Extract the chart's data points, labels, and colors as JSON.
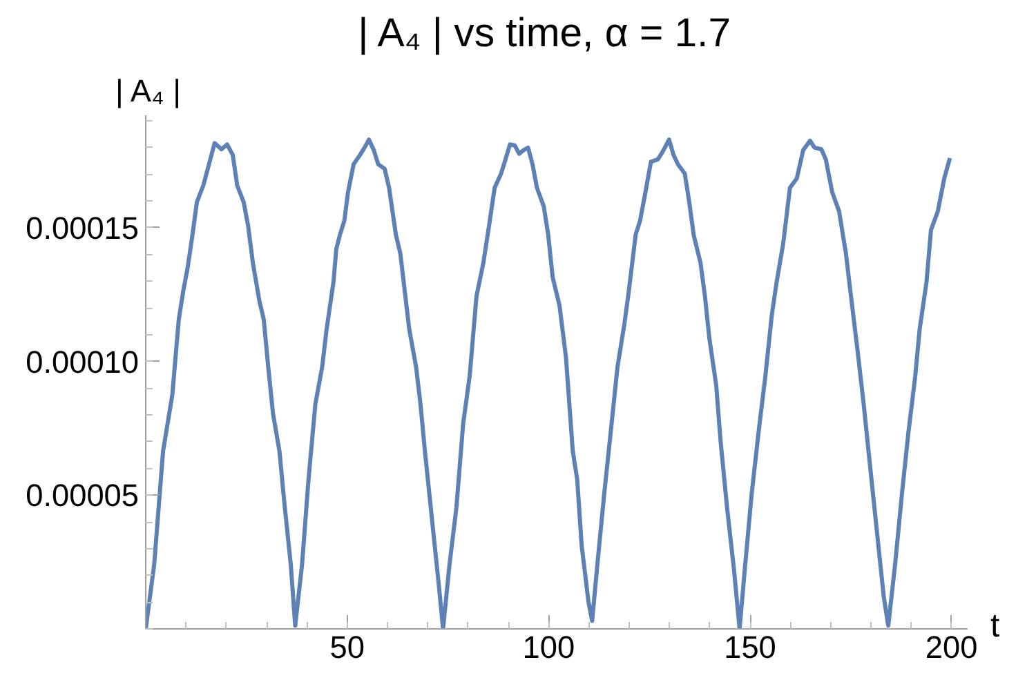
{
  "chart_data": {
    "type": "line",
    "title": "| A₄ |  vs time, α =  1.7",
    "xlabel": "t",
    "ylabel": "| A₄ |",
    "xlim": [
      0,
      204
    ],
    "ylim": [
      0,
      0.000192
    ],
    "xticks": [
      50,
      100,
      150,
      200
    ],
    "yticks": [
      {
        "value": 0,
        "label": null
      },
      {
        "value": 5e-05,
        "label": "0.00005"
      },
      {
        "value": 0.0001,
        "label": "0.00010"
      },
      {
        "value": 0.00015,
        "label": "0.00015"
      }
    ],
    "grid": false,
    "marker": "none",
    "line_style": "solid",
    "series": [
      {
        "color": "#5e81b5",
        "x": [
          0,
          2.1,
          4.3,
          6.6,
          8.2,
          9.3,
          10.4,
          11.6,
          12.7,
          14.3,
          15.4,
          17.1,
          18.8,
          20.2,
          21.6,
          22.7,
          24.3,
          25.4,
          26.6,
          28.2,
          29.3,
          30.4,
          31.6,
          33.2,
          34.3,
          36.0,
          37.1,
          38.8,
          40.4,
          42.1,
          43.8,
          44.9,
          46.6,
          47.3,
          48.2,
          49.3,
          50.2,
          51.6,
          53.2,
          54.3,
          55.4,
          56.6,
          57.7,
          59.3,
          60.4,
          62.1,
          63.2,
          64.3,
          65.4,
          67.1,
          68.2,
          69.3,
          71.0,
          72.7,
          73.8,
          75.4,
          77.1,
          78.8,
          80.4,
          82.1,
          83.8,
          85.4,
          86.6,
          88.2,
          89.3,
          90.4,
          91.6,
          92.7,
          93.8,
          94.9,
          96.0,
          97.1,
          98.8,
          99.9,
          101.0,
          102.7,
          104.3,
          106.0,
          107.1,
          108.2,
          109.9,
          110.8,
          112.1,
          113.8,
          115.4,
          117.1,
          118.8,
          119.9,
          121.6,
          122.7,
          123.8,
          125.4,
          127.1,
          128.2,
          129.9,
          131.0,
          132.1,
          133.8,
          134.9,
          136.0,
          137.7,
          138.8,
          139.9,
          141.6,
          142.7,
          144.3,
          146.0,
          147.4,
          148.8,
          150.4,
          152.1,
          153.8,
          155.4,
          156.6,
          158.2,
          159.9,
          161.6,
          163.2,
          164.9,
          166.0,
          167.7,
          168.8,
          170.4,
          172.1,
          173.8,
          174.9,
          176.6,
          178.2,
          179.9,
          181.6,
          183.2,
          184.3,
          186.0,
          187.7,
          189.3,
          191.0,
          192.1,
          193.8,
          194.9,
          196.6,
          198.2,
          199.6
        ],
        "values": [
          0,
          2.41e-05,
          6.64e-05,
          8.75e-05,
          0.0001156,
          0.0001262,
          0.000135,
          0.0001473,
          0.0001596,
          0.0001658,
          0.000172,
          0.0001816,
          0.0001793,
          0.0001811,
          0.0001772,
          0.0001658,
          0.0001596,
          0.0001508,
          0.0001368,
          0.0001227,
          0.0001156,
          9.8e-05,
          8.04e-05,
          6.64e-05,
          4.87e-05,
          2.41e-05,
          1.2e-06,
          2.41e-05,
          5.58e-05,
          8.4e-05,
          9.8e-05,
          0.0001121,
          0.0001297,
          0.000142,
          0.0001473,
          0.0001526,
          0.0001632,
          0.0001737,
          0.0001772,
          0.0001799,
          0.0001829,
          0.000179,
          0.0001737,
          0.000172,
          0.0001649,
          0.0001473,
          0.0001403,
          0.0001262,
          0.0001121,
          9.8e-05,
          8.4e-05,
          6.64e-05,
          4.17e-05,
          1.71e-05,
          0,
          2.41e-05,
          4.52e-05,
          7.69e-05,
          9.45e-05,
          0.0001244,
          0.0001368,
          0.0001526,
          0.0001649,
          0.0001702,
          0.0001755,
          0.0001811,
          0.0001807,
          0.0001776,
          0.000179,
          0.0001799,
          0.0001737,
          0.0001649,
          0.0001579,
          0.0001473,
          0.0001315,
          0.0001209,
          0.0001016,
          6.64e-05,
          5.58e-05,
          3.12e-05,
          1e-05,
          3e-06,
          2.41e-05,
          5.05e-05,
          7.34e-05,
          9.8e-05,
          0.0001139,
          0.0001262,
          0.0001473,
          0.0001526,
          0.0001614,
          0.0001746,
          0.0001755,
          0.0001781,
          0.0001829,
          0.0001772,
          0.0001737,
          0.0001702,
          0.0001596,
          0.0001473,
          0.0001368,
          0.0001244,
          0.0001086,
          9.1e-05,
          6.99e-05,
          4.52e-05,
          2.23e-05,
          0,
          2.41e-05,
          5.05e-05,
          7.34e-05,
          9.45e-05,
          0.0001174,
          0.0001297,
          0.0001438,
          0.0001649,
          0.0001684,
          0.000179,
          0.0001825,
          0.0001799,
          0.0001793,
          0.0001755,
          0.0001632,
          0.0001561,
          0.0001403,
          0.0001262,
          0.0001051,
          8.4e-05,
          5.93e-05,
          3.47e-05,
          1.18e-05,
          1.2e-06,
          2.41e-05,
          5.05e-05,
          7.34e-05,
          9.45e-05,
          0.0001121,
          0.0001297,
          0.0001491,
          0.0001561,
          0.0001684,
          0.000176
        ]
      }
    ]
  }
}
